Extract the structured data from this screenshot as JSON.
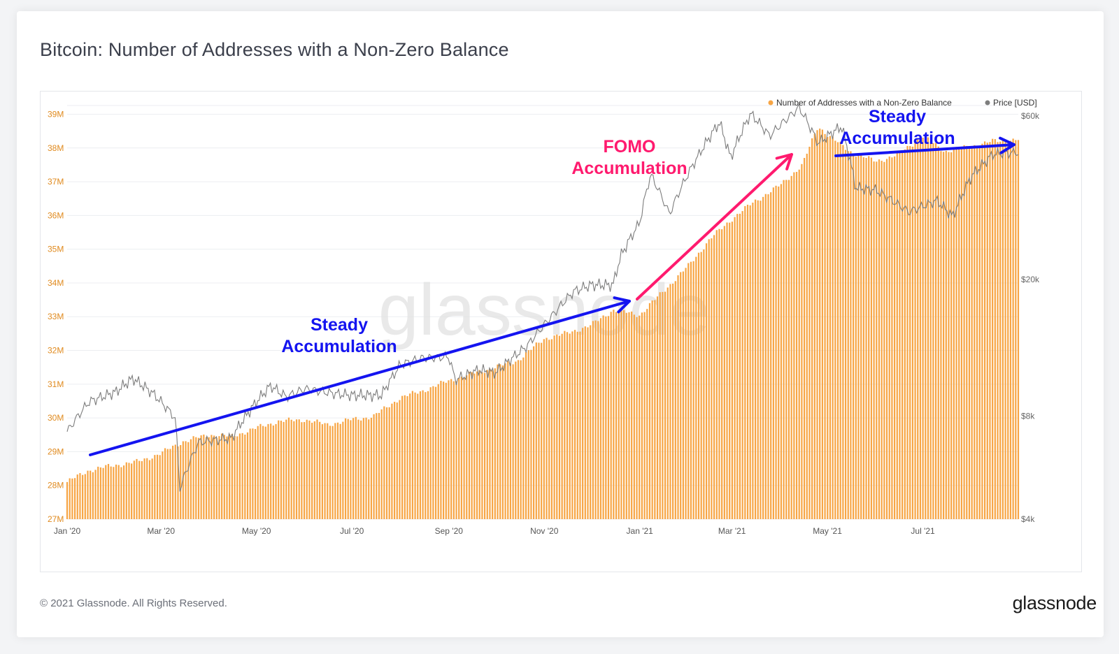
{
  "title": "Bitcoin: Number of Addresses with a Non-Zero Balance",
  "footer": {
    "copyright": "© 2021 Glassnode. All Rights Reserved.",
    "logo": "glassnode"
  },
  "watermark": "glassnode",
  "colors": {
    "bars": "#f7a544",
    "price": "#7d7d7d",
    "left_axis": "#e08a1e",
    "right_axis": "#666666",
    "steady": "#1414f0",
    "fomo": "#ff1a6e"
  },
  "chart_data": {
    "type": "bar",
    "x_tick_labels": [
      "Jan '20",
      "Mar '20",
      "May '20",
      "Jul '20",
      "Sep '20",
      "Nov '20",
      "Jan '21",
      "Mar '21",
      "May '21",
      "Jul '21"
    ],
    "left_axis": {
      "ticks": [
        "27M",
        "28M",
        "29M",
        "30M",
        "31M",
        "32M",
        "33M",
        "34M",
        "35M",
        "36M",
        "37M",
        "38M",
        "39M"
      ],
      "ylim": [
        27,
        39.3
      ]
    },
    "right_axis": {
      "ticks": [
        "$4k",
        "$8k",
        "$20k",
        "$60k"
      ],
      "ylim": [
        4000,
        65000
      ],
      "scale": "log"
    },
    "legend": {
      "placement": "top-right",
      "items": [
        "Number of Addresses with a Non-Zero Balance",
        "Price [USD]"
      ]
    },
    "series": [
      {
        "name": "Number of Addresses with a Non-Zero Balance",
        "type": "bar",
        "axis": "left",
        "unit": "M",
        "points": [
          [
            "2020-01-01",
            28.1
          ],
          [
            "2020-01-15",
            28.45
          ],
          [
            "2020-02-01",
            28.6
          ],
          [
            "2020-02-15",
            28.7
          ],
          [
            "2020-03-01",
            28.95
          ],
          [
            "2020-03-15",
            29.3
          ],
          [
            "2020-04-01",
            29.5
          ],
          [
            "2020-04-15",
            29.45
          ],
          [
            "2020-05-01",
            29.7
          ],
          [
            "2020-05-15",
            29.9
          ],
          [
            "2020-06-01",
            29.95
          ],
          [
            "2020-06-15",
            29.8
          ],
          [
            "2020-07-01",
            29.95
          ],
          [
            "2020-07-15",
            30.05
          ],
          [
            "2020-08-01",
            30.6
          ],
          [
            "2020-08-15",
            30.8
          ],
          [
            "2020-09-01",
            31.1
          ],
          [
            "2020-09-15",
            31.3
          ],
          [
            "2020-10-01",
            31.5
          ],
          [
            "2020-10-15",
            31.7
          ],
          [
            "2020-11-01",
            32.35
          ],
          [
            "2020-11-15",
            32.5
          ],
          [
            "2020-12-01",
            32.75
          ],
          [
            "2020-12-15",
            33.2
          ],
          [
            "2021-01-01",
            33.05
          ],
          [
            "2021-01-15",
            33.7
          ],
          [
            "2021-02-01",
            34.5
          ],
          [
            "2021-02-15",
            35.3
          ],
          [
            "2021-03-01",
            35.9
          ],
          [
            "2021-03-15",
            36.4
          ],
          [
            "2021-04-01",
            36.9
          ],
          [
            "2021-04-15",
            37.5
          ],
          [
            "2021-04-25",
            38.65
          ],
          [
            "2021-05-01",
            38.4
          ],
          [
            "2021-05-15",
            37.9
          ],
          [
            "2021-06-01",
            37.6
          ],
          [
            "2021-06-15",
            37.8
          ],
          [
            "2021-07-01",
            38.35
          ],
          [
            "2021-07-15",
            37.9
          ],
          [
            "2021-08-01",
            38.05
          ],
          [
            "2021-08-15",
            38.2
          ],
          [
            "2021-08-31",
            38.25
          ]
        ]
      },
      {
        "name": "Price [USD]",
        "type": "line",
        "axis": "right",
        "points": [
          [
            "2020-01-01",
            7200
          ],
          [
            "2020-01-15",
            8800
          ],
          [
            "2020-02-01",
            9400
          ],
          [
            "2020-02-12",
            10300
          ],
          [
            "2020-02-25",
            9300
          ],
          [
            "2020-03-10",
            7900
          ],
          [
            "2020-03-13",
            4900
          ],
          [
            "2020-03-25",
            6700
          ],
          [
            "2020-04-15",
            6900
          ],
          [
            "2020-05-01",
            8800
          ],
          [
            "2020-05-10",
            9800
          ],
          [
            "2020-05-20",
            9100
          ],
          [
            "2020-06-01",
            9600
          ],
          [
            "2020-06-20",
            9300
          ],
          [
            "2020-07-01",
            9200
          ],
          [
            "2020-07-20",
            9200
          ],
          [
            "2020-08-01",
            11300
          ],
          [
            "2020-08-15",
            11800
          ],
          [
            "2020-09-01",
            11900
          ],
          [
            "2020-09-05",
            10200
          ],
          [
            "2020-09-20",
            10900
          ],
          [
            "2020-10-01",
            10700
          ],
          [
            "2020-10-21",
            12800
          ],
          [
            "2020-11-05",
            15500
          ],
          [
            "2020-11-20",
            18500
          ],
          [
            "2020-12-01",
            19300
          ],
          [
            "2020-12-15",
            19300
          ],
          [
            "2020-12-20",
            23500
          ],
          [
            "2021-01-01",
            29300
          ],
          [
            "2021-01-08",
            40500
          ],
          [
            "2021-01-20",
            31000
          ],
          [
            "2021-02-08",
            46400
          ],
          [
            "2021-02-21",
            57500
          ],
          [
            "2021-02-28",
            45200
          ],
          [
            "2021-03-13",
            61000
          ],
          [
            "2021-03-25",
            52500
          ],
          [
            "2021-04-13",
            63500
          ],
          [
            "2021-04-25",
            50000
          ],
          [
            "2021-05-10",
            56000
          ],
          [
            "2021-05-19",
            37000
          ],
          [
            "2021-06-01",
            36500
          ],
          [
            "2021-06-22",
            31500
          ],
          [
            "2021-07-10",
            34000
          ],
          [
            "2021-07-20",
            30500
          ],
          [
            "2021-08-01",
            40000
          ],
          [
            "2021-08-15",
            46500
          ],
          [
            "2021-08-31",
            47000
          ]
        ]
      }
    ],
    "annotations": [
      {
        "text": [
          "Steady",
          "Accumulation"
        ],
        "color": "#1414f0"
      },
      {
        "text": [
          "FOMO",
          "Accumulation"
        ],
        "color": "#ff1a6e"
      },
      {
        "text": [
          "Steady",
          "Accumulation"
        ],
        "color": "#1414f0"
      }
    ]
  }
}
